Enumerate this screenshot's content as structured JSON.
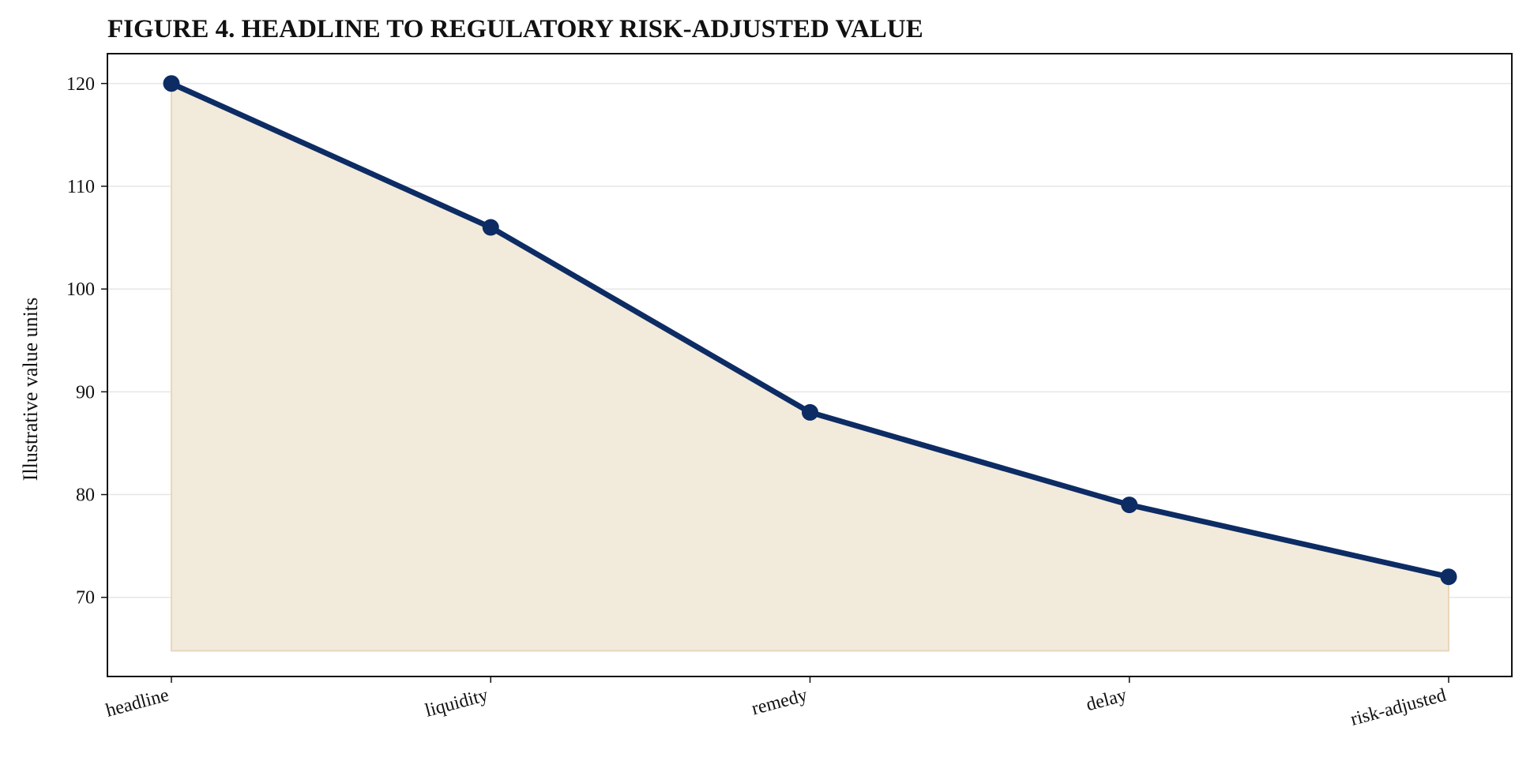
{
  "chart_data": {
    "type": "area",
    "title": "FIGURE 4. HEADLINE TO REGULATORY RISK-ADJUSTED VALUE",
    "xlabel": "",
    "ylabel": "Illustrative value units",
    "categories": [
      "headline",
      "liquidity",
      "remedy",
      "delay",
      "risk-adjusted"
    ],
    "series": [
      {
        "values": [
          120,
          106,
          88,
          79,
          72
        ]
      }
    ],
    "ylim": [
      62.3,
      122.9
    ],
    "fill_baseline": 64.8,
    "yticks": [
      70,
      80,
      90,
      100,
      110,
      120
    ],
    "grid": "horizontal",
    "legend": "none",
    "colors": {
      "line": "#0d2c64",
      "fill": "#f2eadb",
      "fill_edge": "#e8d7b8",
      "grid": "#e6e6e6",
      "axis": "#111111"
    }
  }
}
